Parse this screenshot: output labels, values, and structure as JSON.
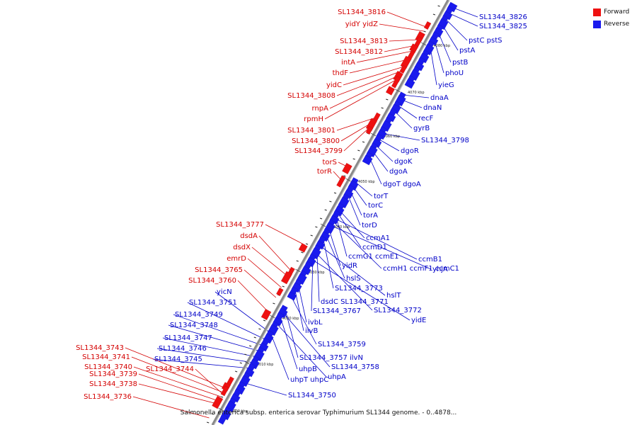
{
  "caption": "Salmonella enterica subsp. enterica serovar Typhimurium SL1344 genome. - 0..4878...",
  "legend": [
    {
      "label": "Forward",
      "color": "#ee1111"
    },
    {
      "label": "Reverse",
      "color": "#1a1aee"
    }
  ],
  "colors": {
    "forward": "#ee1111",
    "reverse": "#1a1aee",
    "forward_text": "#d40000",
    "reverse_text": "#0000c8",
    "backbone": "#8a8a8a"
  },
  "scale_ticks": [
    "4080 kbp",
    "4070 kbp",
    "4060 kbp",
    "4050 kbp",
    "4040 kbp",
    "4030 kbp",
    "4020 kbp",
    "4010 kbp",
    "4000 kbp"
  ],
  "forward_genes": [
    "SL1344_3816",
    "yidY yidZ",
    "SL1344_3813",
    "SL1344_3812",
    "intA",
    "thdF",
    "yidC",
    "SL1344_3808",
    "rnpA",
    "rpmH",
    "SL1344_3801",
    "SL1344_3800",
    "SL1344_3799",
    "torS",
    "torR",
    "SL1344_3777",
    "dsdA",
    "dsdX",
    "emrD",
    "SL1344_3765",
    "SL1344_3760",
    "SL1344_3743",
    "SL1344_3741",
    "SL1344_3740",
    "SL1344_3739",
    "SL1344_3744",
    "SL1344_3738",
    "SL1344_3736"
  ],
  "reverse_genes": [
    "SL1344_3826",
    "SL1344_3825",
    "pstC pstS",
    "pstA",
    "pstB",
    "phoU",
    "yieG",
    "dnaA",
    "dnaN",
    "recF",
    "gyrB",
    "SL1344_3798",
    "dgoR",
    "dgoK",
    "dgoA",
    "dgoT dgoA",
    "torT",
    "torC",
    "torA",
    "torD",
    "ccmA1",
    "ccmD1",
    "ccmG1 ccmE1",
    "ccmB1",
    "ccmH1 ccmF1 ccmC1",
    "yhjA",
    "yidR",
    "hslS",
    "SL1344_3773",
    "hslT",
    "dsdC SL1344_3771",
    "SL1344_3772",
    "SL1344_3767",
    "yidE",
    "yicN",
    "SL1344_3751",
    "SL1344_3749",
    "SL1344_3748",
    "ivbL",
    "ilvB",
    "SL1344_3747",
    "SL1344_3746",
    "SL1344_3759",
    "SL1344_3745",
    "SL1344_3757 ilvN",
    "uhpB",
    "SL1344_3758",
    "uhpA",
    "uhpT uhpC",
    "SL1344_3750"
  ]
}
